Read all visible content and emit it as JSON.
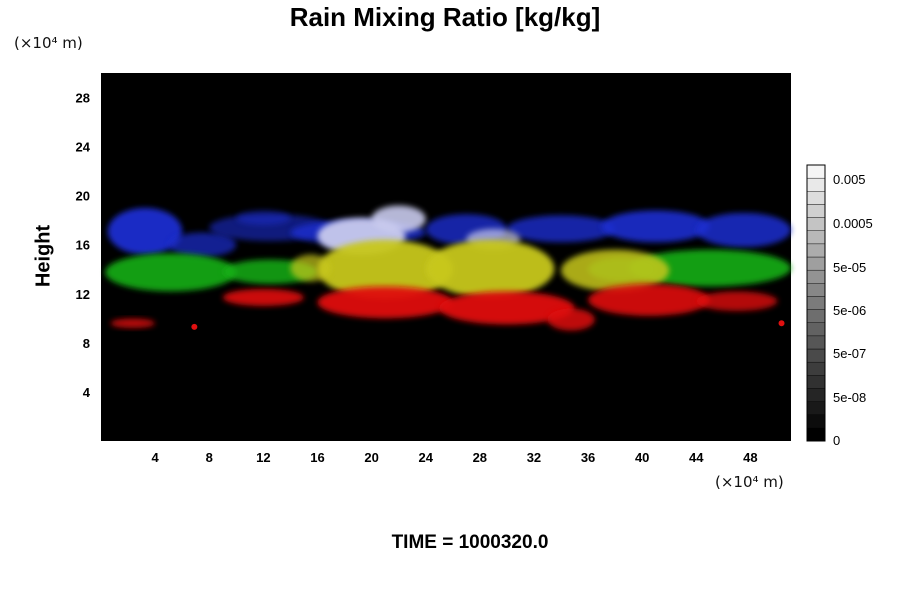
{
  "chart_data": {
    "type": "heatmap",
    "title": "Rain Mixing Ratio [kg/kg]",
    "ylabel": "Height",
    "y_unit": "(×10⁴ m)",
    "x_unit": "(×10⁴ m)",
    "x_ticks": [
      4,
      8,
      12,
      16,
      20,
      24,
      28,
      32,
      36,
      40,
      44,
      48
    ],
    "y_ticks": [
      4,
      8,
      12,
      16,
      20,
      24,
      28
    ],
    "xlim": [
      0,
      51
    ],
    "ylim": [
      0,
      30
    ],
    "colorbar": {
      "labels": [
        "0.005",
        "0.0005",
        "5e-05",
        "5e-06",
        "5e-07",
        "5e-08",
        "0"
      ],
      "levels": 21
    },
    "layers": [
      {
        "color": "#e01010",
        "height_range": [
          9,
          12
        ]
      },
      {
        "color": "#c8c81c",
        "height_range": [
          12,
          16
        ]
      },
      {
        "color": "#18b018",
        "height_range": [
          12,
          16
        ]
      },
      {
        "color": "#1a2fd0",
        "height_range": [
          15,
          19
        ]
      },
      {
        "color": "#c9cbee",
        "height_range": [
          15,
          19
        ]
      }
    ],
    "footer": "TIME = 1000320.0"
  }
}
